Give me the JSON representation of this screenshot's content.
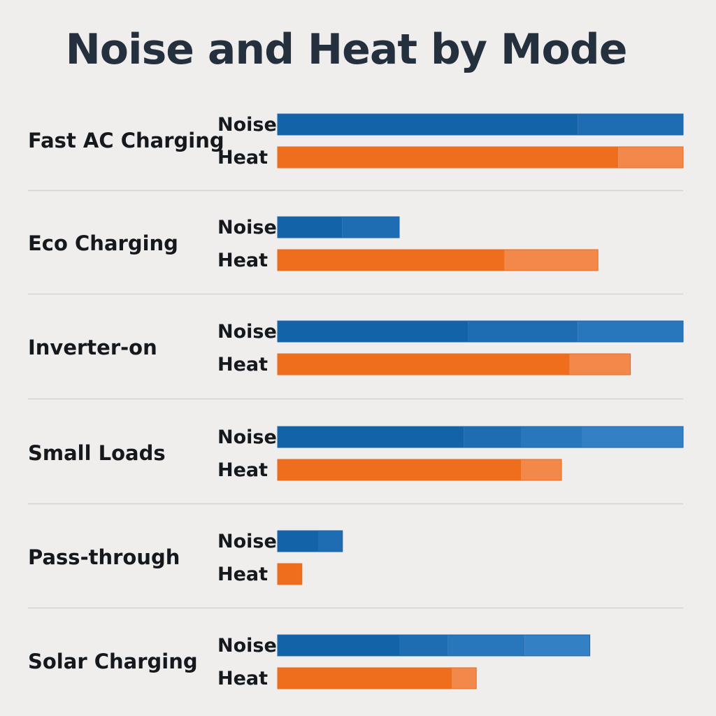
{
  "title": "Noise and Heat by Mode",
  "chart_data": {
    "type": "bar",
    "orientation": "horizontal",
    "title": "Noise and Heat by Mode",
    "xlabel": "",
    "ylabel": "",
    "xlim": [
      0,
      100
    ],
    "grid": false,
    "categories": [
      "Fast AC Charging",
      "Eco Charging",
      "Inverter-on",
      "Small Loads",
      "Pass-through",
      "Solar Charging"
    ],
    "series": [
      {
        "name": "Noise",
        "color": "#1766b0",
        "values": [
          100,
          30,
          100,
          100,
          16,
          77
        ],
        "segments": [
          [
            74,
            26
          ],
          [
            16,
            14
          ],
          [
            47,
            27,
            26
          ],
          [
            46,
            14,
            15,
            25
          ],
          [
            10,
            6
          ],
          [
            30,
            12,
            19,
            16
          ]
        ]
      },
      {
        "name": "Heat",
        "color": "#ef7425",
        "values": [
          100,
          79,
          87,
          70,
          6,
          49
        ],
        "segments": [
          [
            84,
            16
          ],
          [
            56,
            23
          ],
          [
            72,
            15
          ],
          [
            60,
            10
          ],
          [
            6
          ],
          [
            43,
            6
          ]
        ]
      }
    ]
  }
}
